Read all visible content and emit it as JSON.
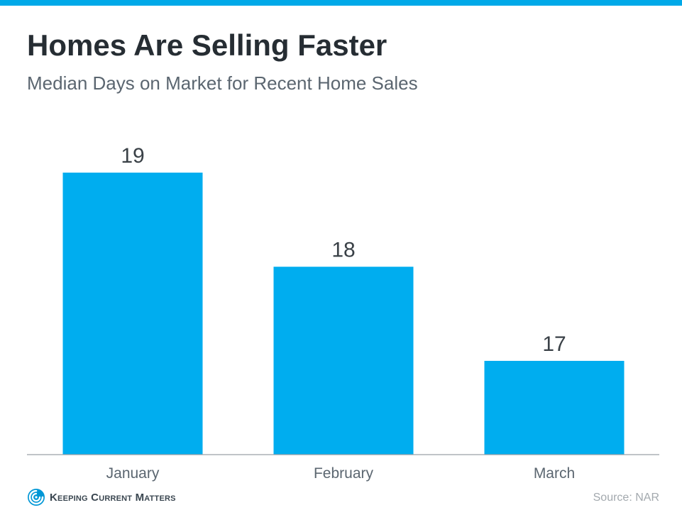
{
  "header": {
    "title": "Homes Are Selling Faster",
    "subtitle": "Median Days on Market for Recent Home Sales"
  },
  "chart_data": {
    "type": "bar",
    "title": "Homes Are Selling Faster",
    "subtitle": "Median Days on Market for Recent Home Sales",
    "categories": [
      "January",
      "February",
      "March"
    ],
    "values": [
      19,
      18,
      17
    ],
    "data_labels": [
      "19",
      "18",
      "17"
    ],
    "xlabel": "",
    "ylabel": "",
    "grid": false,
    "legend": "none",
    "bar_color": "#00ADEF"
  },
  "footer": {
    "logo_text": "Keeping Current Matters",
    "source": "Source: NAR"
  },
  "colors": {
    "accent": "#00ADEF",
    "title": "#262D33",
    "subtitle": "#5B6670",
    "axis": "#9AA0A6",
    "source": "#A3A9AE"
  },
  "icons": {
    "logo": "kcm-swirl-icon"
  }
}
